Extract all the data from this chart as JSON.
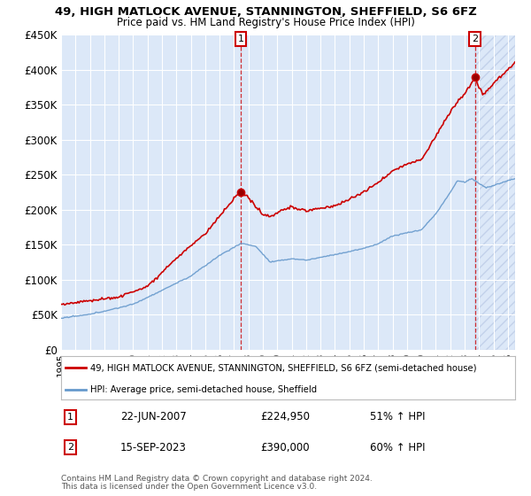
{
  "title": "49, HIGH MATLOCK AVENUE, STANNINGTON, SHEFFIELD, S6 6FZ",
  "subtitle": "Price paid vs. HM Land Registry's House Price Index (HPI)",
  "legend_line1": "49, HIGH MATLOCK AVENUE, STANNINGTON, SHEFFIELD, S6 6FZ (semi-detached house)",
  "legend_line2": "HPI: Average price, semi-detached house, Sheffield",
  "annotation1_date": "22-JUN-2007",
  "annotation1_price": "£224,950",
  "annotation1_hpi": "51% ↑ HPI",
  "annotation2_date": "15-SEP-2023",
  "annotation2_price": "£390,000",
  "annotation2_hpi": "60% ↑ HPI",
  "footnote1": "Contains HM Land Registry data © Crown copyright and database right 2024.",
  "footnote2": "This data is licensed under the Open Government Licence v3.0.",
  "ylim": [
    0,
    450000
  ],
  "yticks": [
    0,
    50000,
    100000,
    150000,
    200000,
    250000,
    300000,
    350000,
    400000,
    450000
  ],
  "ytick_labels": [
    "£0",
    "£50K",
    "£100K",
    "£150K",
    "£200K",
    "£250K",
    "£300K",
    "£350K",
    "£400K",
    "£450K"
  ],
  "red_color": "#cc0000",
  "blue_color": "#6699cc",
  "annotation_box_color": "#cc0000",
  "background_color": "#ffffff",
  "plot_bg_color": "#dce8f8",
  "grid_color": "#ffffff",
  "x_start_year": 1995.0,
  "x_end_year": 2026.5,
  "sale1_year": 2007.458,
  "sale1_price": 224950,
  "sale2_year": 2023.708,
  "sale2_price": 390000,
  "hatch_right": true
}
